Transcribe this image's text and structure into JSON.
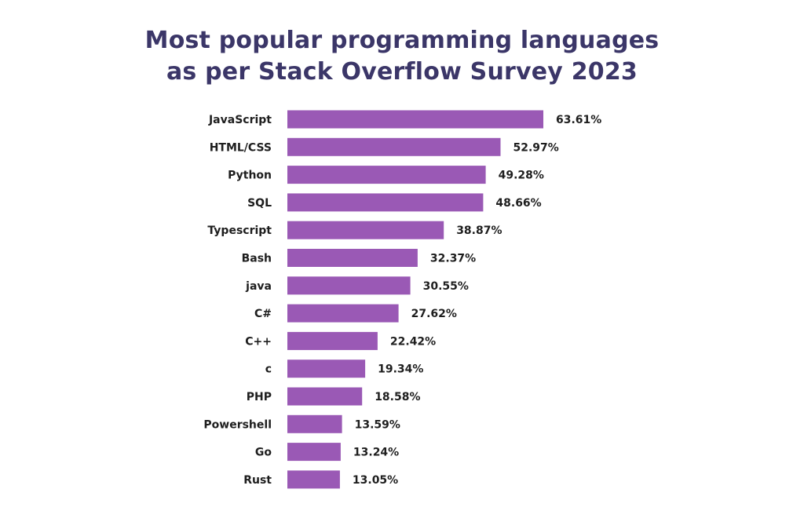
{
  "title": {
    "line1": "Most popular programming languages",
    "line2": "as per Stack Overflow Survey 2023"
  },
  "colors": {
    "bar": "#9a59b5",
    "title": "#3b3668",
    "text": "#1e1e1e",
    "background": "#ffffff"
  },
  "chart_data": {
    "type": "bar",
    "orientation": "horizontal",
    "title": "Most popular programming languages as per Stack Overflow Survey 2023",
    "categories": [
      "JavaScript",
      "HTML/CSS",
      "Python",
      "SQL",
      "Typescript",
      "Bash",
      "java",
      "C#",
      "C++",
      "c",
      "PHP",
      "Powershell",
      "Go",
      "Rust"
    ],
    "values": [
      63.61,
      52.97,
      49.28,
      48.66,
      38.87,
      32.37,
      30.55,
      27.62,
      22.42,
      19.34,
      18.58,
      13.59,
      13.24,
      13.05
    ],
    "value_labels": [
      "63.61%",
      "52.97%",
      "49.28%",
      "48.66%",
      "38.87%",
      "32.37%",
      "30.55%",
      "27.62%",
      "22.42%",
      "19.34%",
      "18.58%",
      "13.59%",
      "13.24%",
      "13.05%"
    ],
    "xlabel": "",
    "ylabel": "",
    "grid": false,
    "legend": "none"
  }
}
